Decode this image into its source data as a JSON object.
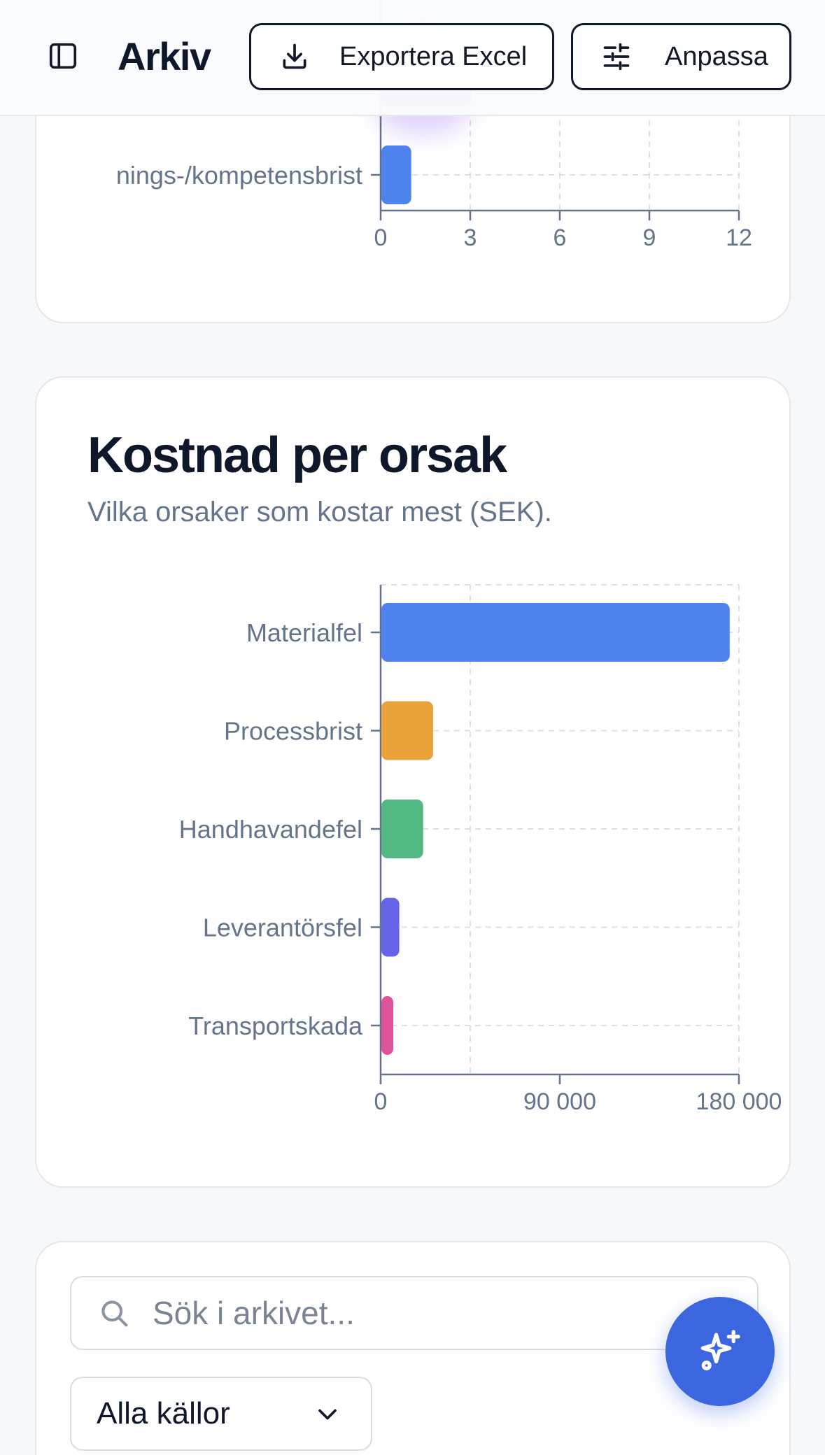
{
  "header": {
    "title": "Arkiv",
    "export_label": "Exportera Excel",
    "customize_label": "Anpassa",
    "icons": [
      "sidebar-toggle-icon",
      "download-icon",
      "sliders-icon"
    ]
  },
  "chart_data": [
    {
      "type": "bar",
      "orientation": "horizontal",
      "title": "",
      "categories": [
        "nings-/kompetensbrist"
      ],
      "values": [
        1
      ],
      "partially_visible": [
        {
          "category": "",
          "value": 3,
          "color": "#8b5cf6"
        }
      ],
      "xticks": [
        "0",
        "3",
        "6",
        "9",
        "12"
      ],
      "xlim": [
        0,
        12
      ],
      "colors": [
        "#4e83ee"
      ],
      "grid": true
    },
    {
      "type": "bar",
      "orientation": "horizontal",
      "title": "Kostnad per orsak",
      "subtitle": "Vilka orsaker som kostar mest (SEK).",
      "categories": [
        "Materialfel",
        "Processbrist",
        "Handhavandefel",
        "Leverantörsfel",
        "Transportskada"
      ],
      "values": [
        175000,
        26000,
        21000,
        9000,
        6000
      ],
      "xticks": [
        "0",
        "90 000",
        "180 000"
      ],
      "xlim": [
        0,
        180000
      ],
      "colors": [
        "#4e83ee",
        "#eaa23a",
        "#52b884",
        "#6563e8",
        "#de539a"
      ],
      "grid": true
    }
  ],
  "filters": {
    "search_placeholder": "Sök i arkivet...",
    "source_select": "Alla källor",
    "icons": [
      "search-icon",
      "chevron-down-icon"
    ]
  },
  "fab": {
    "icon": "sparkles-icon"
  }
}
